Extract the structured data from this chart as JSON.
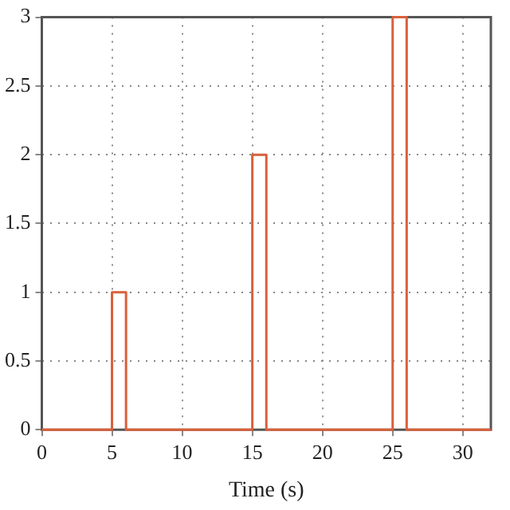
{
  "chart_data": {
    "type": "step",
    "xlabel": "Time (s)",
    "x": [
      0,
      5,
      6,
      15,
      16,
      25,
      26,
      32
    ],
    "series": [
      {
        "color": "#d9603b",
        "values": [
          0,
          1,
          0,
          2,
          0,
          3,
          0,
          0
        ]
      }
    ],
    "xlim": [
      0,
      32
    ],
    "xticks": [
      0,
      5,
      10,
      15,
      20,
      25,
      30
    ],
    "ylim": [
      0,
      3
    ],
    "yticks": [
      0,
      0.5,
      1,
      1.5,
      2,
      2.5,
      3
    ],
    "grid": true,
    "legend": false,
    "line_style": "solid",
    "marker": "none"
  }
}
